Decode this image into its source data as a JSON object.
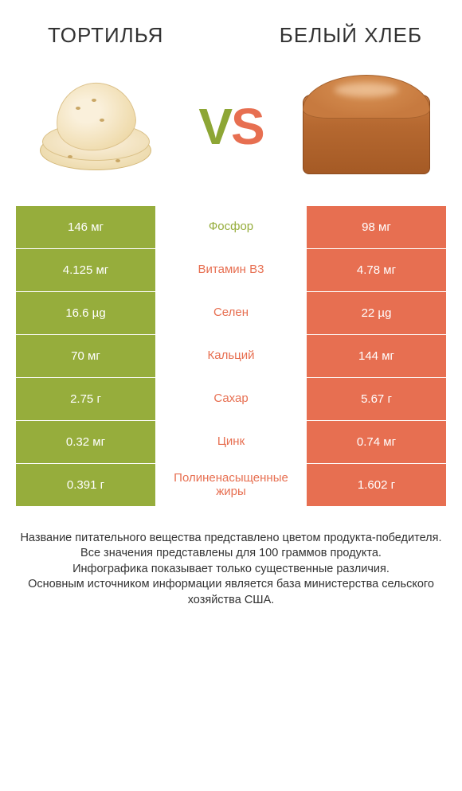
{
  "colors": {
    "left": "#96ad3c",
    "right": "#e76f51",
    "text_dark": "#333333"
  },
  "header": {
    "left_title": "ТОРТИЛЬЯ",
    "right_title": "БЕЛЫЙ ХЛЕБ"
  },
  "vs": {
    "v": "V",
    "s": "S"
  },
  "rows": [
    {
      "left": "146 мг",
      "label": "Фосфор",
      "right": "98 мг",
      "winner": "left"
    },
    {
      "left": "4.125 мг",
      "label": "Витамин B3",
      "right": "4.78 мг",
      "winner": "right"
    },
    {
      "left": "16.6 µg",
      "label": "Селен",
      "right": "22 µg",
      "winner": "right"
    },
    {
      "left": "70 мг",
      "label": "Кальций",
      "right": "144 мг",
      "winner": "right"
    },
    {
      "left": "2.75 г",
      "label": "Сахар",
      "right": "5.67 г",
      "winner": "right"
    },
    {
      "left": "0.32 мг",
      "label": "Цинк",
      "right": "0.74 мг",
      "winner": "right"
    },
    {
      "left": "0.391 г",
      "label": "Полиненасыщенные жиры",
      "right": "1.602 г",
      "winner": "right"
    }
  ],
  "footer": {
    "line1": "Название питательного вещества представлено цветом продукта-победителя.",
    "line2": "Все значения представлены для 100 граммов продукта.",
    "line3": "Инфографика показывает только существенные различия.",
    "line4": "Основным источником информации является база министерства сельского хозяйства США."
  }
}
